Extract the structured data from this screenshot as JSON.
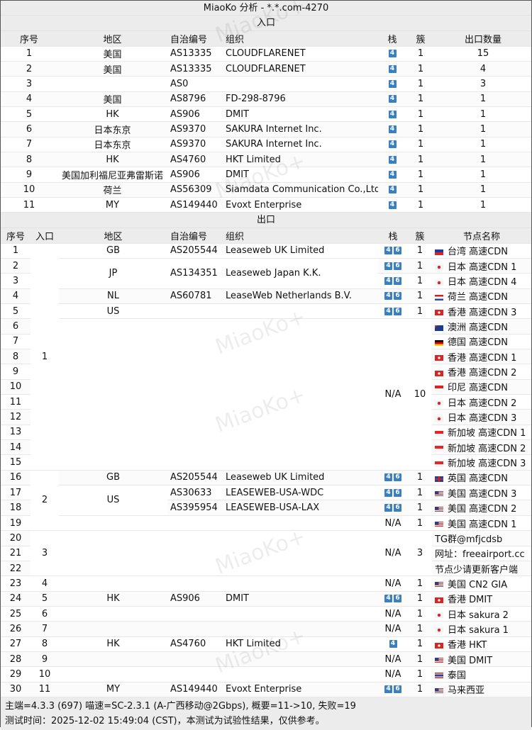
{
  "title": "MiaoKo 分析 - *.*.com-4270",
  "watermark": "MiaoKo+",
  "badge_color": "#3a7fc0",
  "entry": {
    "section": "入口",
    "headers": [
      "序号",
      "地区",
      "自治编号",
      "组织",
      "栈",
      "簇",
      "出口数量"
    ],
    "rows": [
      [
        "1",
        "美国",
        "AS13335",
        "CLOUDFLARENET",
        "4",
        "1",
        "15"
      ],
      [
        "2",
        "美国",
        "AS13335",
        "CLOUDFLARENET",
        "4",
        "1",
        "4"
      ],
      [
        "3",
        "",
        "AS0",
        "",
        "4",
        "1",
        "3"
      ],
      [
        "4",
        "美国",
        "AS8796",
        "FD-298-8796",
        "4",
        "1",
        "1"
      ],
      [
        "5",
        "HK",
        "AS906",
        "DMIT",
        "4",
        "1",
        "1"
      ],
      [
        "6",
        "日本东京",
        "AS9370",
        "SAKURA Internet Inc.",
        "4",
        "1",
        "1"
      ],
      [
        "7",
        "日本东京",
        "AS9370",
        "SAKURA Internet Inc.",
        "4",
        "1",
        "1"
      ],
      [
        "8",
        "HK",
        "AS4760",
        "HKT Limited",
        "4",
        "1",
        "1"
      ],
      [
        "9",
        "美国加利福尼亚弗雷斯诺",
        "AS906",
        "DMIT",
        "4",
        "1",
        "1"
      ],
      [
        "10",
        "荷兰",
        "AS56309",
        "Siamdata Communication Co.,Ltd.",
        "4",
        "1",
        "1"
      ],
      [
        "11",
        "MY",
        "AS149440",
        "Evoxt Enterprise",
        "4",
        "1",
        "1"
      ]
    ]
  },
  "exit": {
    "section": "出口",
    "headers": [
      "序号",
      "入口",
      "地区",
      "自治编号",
      "组织",
      "栈",
      "簇",
      "节点名称"
    ],
    "rows": [
      {
        "no": "1",
        "entry": "1",
        "region": "GB",
        "asn": "AS205544",
        "org": "Leaseweb UK Limited",
        "stack": "46",
        "cluster": "1",
        "flag": "tw",
        "node": "台湾 高速CDN"
      },
      {
        "no": "2",
        "entry": null,
        "region": "JP",
        "asn": "AS134351",
        "org": "Leaseweb Japan K.K.",
        "stack": "46",
        "cluster": "1",
        "flag": "jp",
        "node": "日本 高速CDN 1"
      },
      {
        "no": "3",
        "entry": null,
        "region": null,
        "asn": null,
        "org": null,
        "stack": "46",
        "cluster": "1",
        "flag": "jp",
        "node": "日本 高速CDN 4"
      },
      {
        "no": "4",
        "entry": null,
        "region": "NL",
        "asn": "AS60781",
        "org": "LeaseWeb Netherlands B.V.",
        "stack": "46",
        "cluster": "1",
        "flag": "nl",
        "node": "荷兰 高速CDN"
      },
      {
        "no": "5",
        "entry": null,
        "region": "US",
        "asn": "",
        "org": "",
        "stack": "46",
        "cluster": "1",
        "flag": "hk",
        "node": "香港 高速CDN 3"
      },
      {
        "no": "6",
        "entry": null,
        "region": "",
        "asn": "",
        "org": "",
        "stack": "N/A",
        "cluster": "10",
        "flag": "au",
        "node": "澳洲 高速CDN"
      },
      {
        "no": "7",
        "entry": null,
        "region": null,
        "asn": null,
        "org": null,
        "stack": null,
        "cluster": null,
        "flag": "de",
        "node": "德国 高速CDN"
      },
      {
        "no": "8",
        "entry": null,
        "region": null,
        "asn": null,
        "org": null,
        "stack": null,
        "cluster": null,
        "flag": "hk",
        "node": "香港 高速CDN 1"
      },
      {
        "no": "9",
        "entry": null,
        "region": null,
        "asn": null,
        "org": null,
        "stack": null,
        "cluster": null,
        "flag": "hk",
        "node": "香港 高速CDN 2"
      },
      {
        "no": "10",
        "entry": null,
        "region": null,
        "asn": null,
        "org": null,
        "stack": null,
        "cluster": null,
        "flag": "id",
        "node": "印尼 高速CDN"
      },
      {
        "no": "11",
        "entry": null,
        "region": null,
        "asn": null,
        "org": null,
        "stack": null,
        "cluster": null,
        "flag": "jp",
        "node": "日本 高速CDN 2"
      },
      {
        "no": "12",
        "entry": null,
        "region": null,
        "asn": null,
        "org": null,
        "stack": null,
        "cluster": null,
        "flag": "jp",
        "node": "日本 高速CDN 3"
      },
      {
        "no": "13",
        "entry": null,
        "region": null,
        "asn": null,
        "org": null,
        "stack": null,
        "cluster": null,
        "flag": "sg",
        "node": "新加坡 高速CDN 1"
      },
      {
        "no": "14",
        "entry": null,
        "region": null,
        "asn": null,
        "org": null,
        "stack": null,
        "cluster": null,
        "flag": "sg",
        "node": "新加坡 高速CDN 2"
      },
      {
        "no": "15",
        "entry": null,
        "region": null,
        "asn": null,
        "org": null,
        "stack": null,
        "cluster": null,
        "flag": "sg",
        "node": "新加坡 高速CDN 3"
      },
      {
        "no": "16",
        "entry": "2",
        "region": "GB",
        "asn": "AS205544",
        "org": "Leaseweb UK Limited",
        "stack": "46",
        "cluster": "1",
        "flag": "gb",
        "node": "英国 高速CDN"
      },
      {
        "no": "17",
        "entry": null,
        "region": "US",
        "asn": "AS30633",
        "org": "LEASEWEB-USA-WDC",
        "stack": "46",
        "cluster": "1",
        "flag": "us",
        "node": "美国 高速CDN 3"
      },
      {
        "no": "18",
        "entry": null,
        "region": null,
        "asn": "AS395954",
        "org": "LEASEWEB-USA-LAX",
        "stack": "46",
        "cluster": "1",
        "flag": "us",
        "node": "美国 高速CDN 2"
      },
      {
        "no": "19",
        "entry": null,
        "region": "",
        "asn": "",
        "org": "",
        "stack": "N/A",
        "cluster": "1",
        "flag": "us",
        "node": "美国 高速CDN 1"
      },
      {
        "no": "20",
        "entry": "3",
        "region": "",
        "asn": "",
        "org": "",
        "stack": "N/A",
        "cluster": "3",
        "flag": "",
        "node": "TG群@mfjcdsb"
      },
      {
        "no": "21",
        "entry": null,
        "region": null,
        "asn": null,
        "org": null,
        "stack": null,
        "cluster": null,
        "flag": "",
        "node": "网址：freeairport.cc"
      },
      {
        "no": "22",
        "entry": null,
        "region": null,
        "asn": null,
        "org": null,
        "stack": null,
        "cluster": null,
        "flag": "",
        "node": "节点少请更新客户端"
      },
      {
        "no": "23",
        "entry": "4",
        "region": "",
        "asn": "",
        "org": "",
        "stack": "N/A",
        "cluster": "1",
        "flag": "us",
        "node": "美国 CN2 GIA"
      },
      {
        "no": "24",
        "entry": "5",
        "region": "HK",
        "asn": "AS906",
        "org": "DMIT",
        "stack": "46",
        "cluster": "1",
        "flag": "hk",
        "node": "香港 DMIT"
      },
      {
        "no": "25",
        "entry": "6",
        "region": "",
        "asn": "",
        "org": "",
        "stack": "N/A",
        "cluster": "1",
        "flag": "jp",
        "node": "日本 sakura 2"
      },
      {
        "no": "26",
        "entry": "7",
        "region": "",
        "asn": "",
        "org": "",
        "stack": "N/A",
        "cluster": "1",
        "flag": "jp",
        "node": "日本 sakura 1"
      },
      {
        "no": "27",
        "entry": "8",
        "region": "HK",
        "asn": "AS4760",
        "org": "HKT Limited",
        "stack": "4",
        "cluster": "1",
        "flag": "hk",
        "node": "香港 HKT"
      },
      {
        "no": "28",
        "entry": "9",
        "region": "",
        "asn": "",
        "org": "",
        "stack": "N/A",
        "cluster": "1",
        "flag": "us",
        "node": "美国 DMIT"
      },
      {
        "no": "29",
        "entry": "10",
        "region": "",
        "asn": "",
        "org": "",
        "stack": "N/A",
        "cluster": "1",
        "flag": "th",
        "node": "泰国"
      },
      {
        "no": "30",
        "entry": "11",
        "region": "MY",
        "asn": "AS149440",
        "org": "Evoxt Enterprise",
        "stack": "46",
        "cluster": "1",
        "flag": "my",
        "node": "马来西亚"
      }
    ]
  },
  "footer": {
    "line1": "主端=4.3.3 (697) 喵速=SC-2.3.1 (A-广西移动@2Gbps), 概要=11->10, 失败=19",
    "line2": "测试时间：2025-12-02 15:49:04 (CST)，本测试为试验性结果，仅供参考。"
  }
}
